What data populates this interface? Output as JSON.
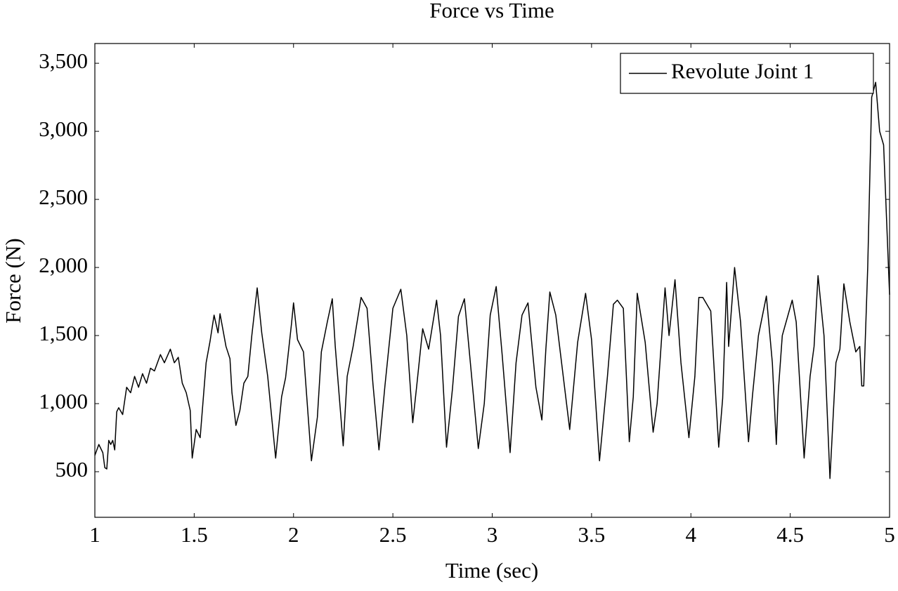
{
  "chart_data": {
    "type": "line",
    "title": "Force vs Time",
    "x_label": "Time (sec)",
    "y_label": "Force (N)",
    "xlim": [
      1,
      5
    ],
    "ylim": [
      165,
      3645
    ],
    "xticks": [
      1,
      1.5,
      2,
      2.5,
      3,
      3.5,
      4,
      4.5,
      5
    ],
    "yticks": [
      500,
      {
        "value": 1000,
        "label": "1,000"
      },
      {
        "value": 1500,
        "label": "1,500"
      },
      {
        "value": 2000,
        "label": "2,000"
      },
      {
        "value": 2500,
        "label": "2,500"
      },
      {
        "value": 3000,
        "label": "3,000"
      },
      {
        "value": 3500,
        "label": "3,500"
      }
    ],
    "legend": "top-right",
    "x": [
      1.0,
      1.02,
      1.04,
      1.05,
      1.06,
      1.07,
      1.08,
      1.09,
      1.1,
      1.11,
      1.12,
      1.14,
      1.16,
      1.18,
      1.2,
      1.22,
      1.24,
      1.26,
      1.28,
      1.3,
      1.33,
      1.35,
      1.38,
      1.4,
      1.42,
      1.44,
      1.46,
      1.48,
      1.49,
      1.51,
      1.53,
      1.56,
      1.58,
      1.6,
      1.62,
      1.63,
      1.66,
      1.68,
      1.69,
      1.71,
      1.73,
      1.75,
      1.77,
      1.79,
      1.817,
      1.84,
      1.87,
      1.91,
      1.94,
      1.96,
      1.99,
      2.0,
      2.02,
      2.05,
      2.09,
      2.12,
      2.14,
      2.17,
      2.195,
      2.21,
      2.25,
      2.27,
      2.3,
      2.34,
      2.37,
      2.4,
      2.43,
      2.46,
      2.5,
      2.54,
      2.57,
      2.6,
      2.62,
      2.65,
      2.68,
      2.72,
      2.74,
      2.77,
      2.8,
      2.83,
      2.86,
      2.89,
      2.93,
      2.96,
      2.99,
      3.02,
      3.05,
      3.09,
      3.12,
      3.15,
      3.18,
      3.22,
      3.25,
      3.27,
      3.29,
      3.32,
      3.39,
      3.43,
      3.47,
      3.5,
      3.54,
      3.58,
      3.61,
      3.63,
      3.66,
      3.69,
      3.71,
      3.73,
      3.77,
      3.81,
      3.83,
      3.87,
      3.89,
      3.92,
      3.95,
      3.99,
      4.02,
      4.04,
      4.06,
      4.1,
      4.14,
      4.16,
      4.18,
      4.19,
      4.22,
      4.25,
      4.29,
      4.31,
      4.34,
      4.38,
      4.41,
      4.43,
      4.44,
      4.46,
      4.51,
      4.53,
      4.57,
      4.6,
      4.62,
      4.64,
      4.67,
      4.7,
      4.73,
      4.75,
      4.77,
      4.8,
      4.83,
      4.85,
      4.86,
      4.87,
      4.89,
      4.91,
      4.93,
      4.95,
      4.97,
      5.0
    ],
    "series": [
      {
        "name": "Revolute Joint 1",
        "color": "#000000",
        "values": [
          620,
          700,
          640,
          530,
          520,
          730,
          700,
          730,
          660,
          940,
          970,
          920,
          1120,
          1080,
          1200,
          1120,
          1220,
          1150,
          1260,
          1240,
          1360,
          1300,
          1400,
          1300,
          1340,
          1150,
          1080,
          950,
          600,
          810,
          750,
          1300,
          1460,
          1650,
          1520,
          1660,
          1420,
          1330,
          1080,
          840,
          950,
          1150,
          1200,
          1500,
          1850,
          1520,
          1200,
          600,
          1050,
          1190,
          1590,
          1740,
          1470,
          1380,
          580,
          900,
          1380,
          1600,
          1770,
          1420,
          690,
          1200,
          1420,
          1780,
          1700,
          1140,
          660,
          1130,
          1700,
          1840,
          1500,
          860,
          1130,
          1550,
          1400,
          1760,
          1500,
          680,
          1110,
          1640,
          1770,
          1300,
          670,
          1000,
          1650,
          1860,
          1360,
          640,
          1300,
          1650,
          1740,
          1120,
          880,
          1400,
          1820,
          1650,
          810,
          1450,
          1810,
          1470,
          580,
          1200,
          1730,
          1760,
          1700,
          720,
          1050,
          1810,
          1450,
          790,
          1000,
          1850,
          1500,
          1910,
          1300,
          750,
          1200,
          1780,
          1780,
          1680,
          680,
          1040,
          1890,
          1420,
          2000,
          1600,
          720,
          1060,
          1500,
          1790,
          1300,
          700,
          1090,
          1500,
          1760,
          1600,
          600,
          1200,
          1420,
          1940,
          1500,
          450,
          1300,
          1400,
          1880,
          1600,
          1380,
          1420,
          1130,
          1130,
          2000,
          3250,
          3360,
          3000,
          2900,
          1800
        ]
      }
    ]
  }
}
